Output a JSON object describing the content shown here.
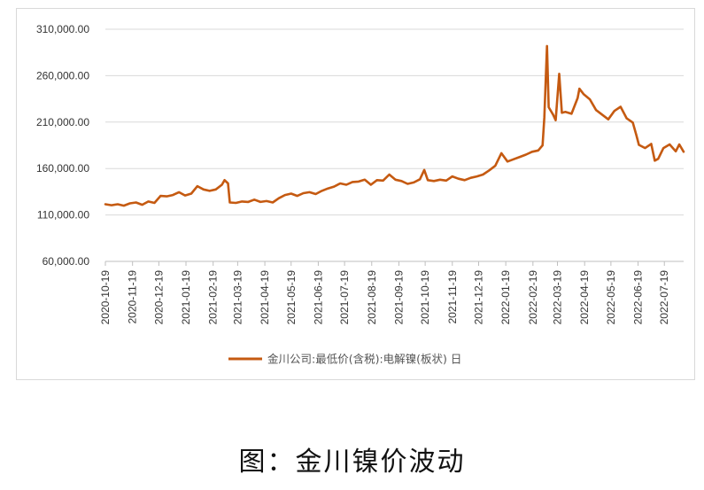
{
  "caption": "图：金川镍价波动",
  "chart_data": {
    "type": "line",
    "title": "",
    "xlabel": "",
    "ylabel": "",
    "ylim": [
      60000,
      310000
    ],
    "y_ticks": [
      "60,000.00",
      "110,000.00",
      "160,000.00",
      "210,000.00",
      "260,000.00",
      "310,000.00"
    ],
    "x_ticks": [
      "2020-10-19",
      "2020-11-19",
      "2020-12-19",
      "2021-01-19",
      "2021-02-19",
      "2021-03-19",
      "2021-04-19",
      "2021-05-19",
      "2021-06-19",
      "2021-07-19",
      "2021-08-19",
      "2021-09-19",
      "2021-10-19",
      "2021-11-19",
      "2021-12-19",
      "2022-01-19",
      "2022-02-19",
      "2022-03-19",
      "2022-04-19",
      "2022-05-19",
      "2022-06-19",
      "2022-07-19"
    ],
    "grid": "horizontal",
    "legend_position": "bottom",
    "series": [
      {
        "name": "金川公司:最低价(含税):电解镍(板状) 日",
        "color": "#C55A11",
        "points": [
          [
            "2020-10-19",
            121500
          ],
          [
            "2020-10-26",
            120500
          ],
          [
            "2020-11-02",
            121500
          ],
          [
            "2020-11-09",
            120000
          ],
          [
            "2020-11-16",
            122500
          ],
          [
            "2020-11-23",
            123500
          ],
          [
            "2020-11-30",
            121000
          ],
          [
            "2020-12-07",
            124500
          ],
          [
            "2020-12-14",
            123000
          ],
          [
            "2020-12-21",
            130500
          ],
          [
            "2020-12-28",
            130000
          ],
          [
            "2021-01-04",
            131500
          ],
          [
            "2021-01-11",
            134500
          ],
          [
            "2021-01-18",
            131000
          ],
          [
            "2021-01-25",
            133000
          ],
          [
            "2021-02-01",
            141000
          ],
          [
            "2021-02-08",
            137500
          ],
          [
            "2021-02-15",
            136000
          ],
          [
            "2021-02-22",
            137500
          ],
          [
            "2021-03-01",
            142500
          ],
          [
            "2021-03-04",
            147500
          ],
          [
            "2021-03-08",
            144000
          ],
          [
            "2021-03-10",
            123500
          ],
          [
            "2021-03-17",
            123000
          ],
          [
            "2021-03-24",
            124500
          ],
          [
            "2021-03-31",
            124000
          ],
          [
            "2021-04-07",
            126500
          ],
          [
            "2021-04-14",
            124000
          ],
          [
            "2021-04-21",
            125000
          ],
          [
            "2021-04-28",
            123500
          ],
          [
            "2021-05-05",
            128000
          ],
          [
            "2021-05-12",
            131500
          ],
          [
            "2021-05-19",
            133000
          ],
          [
            "2021-05-26",
            130500
          ],
          [
            "2021-06-02",
            133500
          ],
          [
            "2021-06-09",
            134500
          ],
          [
            "2021-06-16",
            132500
          ],
          [
            "2021-06-23",
            136000
          ],
          [
            "2021-06-30",
            138500
          ],
          [
            "2021-07-07",
            140500
          ],
          [
            "2021-07-14",
            144000
          ],
          [
            "2021-07-21",
            142500
          ],
          [
            "2021-07-28",
            145500
          ],
          [
            "2021-08-04",
            146000
          ],
          [
            "2021-08-11",
            148000
          ],
          [
            "2021-08-18",
            142500
          ],
          [
            "2021-08-25",
            147500
          ],
          [
            "2021-09-01",
            147000
          ],
          [
            "2021-09-08",
            153500
          ],
          [
            "2021-09-15",
            148000
          ],
          [
            "2021-09-22",
            146500
          ],
          [
            "2021-09-29",
            143500
          ],
          [
            "2021-10-06",
            145000
          ],
          [
            "2021-10-13",
            148500
          ],
          [
            "2021-10-18",
            158500
          ],
          [
            "2021-10-22",
            147500
          ],
          [
            "2021-10-29",
            146500
          ],
          [
            "2021-11-05",
            148000
          ],
          [
            "2021-11-12",
            147000
          ],
          [
            "2021-11-19",
            151500
          ],
          [
            "2021-11-26",
            149000
          ],
          [
            "2021-12-03",
            147500
          ],
          [
            "2021-12-10",
            150000
          ],
          [
            "2021-12-17",
            151500
          ],
          [
            "2021-12-24",
            153500
          ],
          [
            "2021-12-31",
            158000
          ],
          [
            "2022-01-07",
            163000
          ],
          [
            "2022-01-14",
            176500
          ],
          [
            "2022-01-21",
            167500
          ],
          [
            "2022-01-28",
            170000
          ],
          [
            "2022-02-04",
            172500
          ],
          [
            "2022-02-11",
            175000
          ],
          [
            "2022-02-18",
            178000
          ],
          [
            "2022-02-25",
            179500
          ],
          [
            "2022-03-02",
            185000
          ],
          [
            "2022-03-04",
            215000
          ],
          [
            "2022-03-07",
            292000
          ],
          [
            "2022-03-09",
            226000
          ],
          [
            "2022-03-14",
            218000
          ],
          [
            "2022-03-17",
            212000
          ],
          [
            "2022-03-21",
            262000
          ],
          [
            "2022-03-24",
            220000
          ],
          [
            "2022-03-28",
            221000
          ],
          [
            "2022-04-04",
            219000
          ],
          [
            "2022-04-11",
            236000
          ],
          [
            "2022-04-13",
            246000
          ],
          [
            "2022-04-18",
            240000
          ],
          [
            "2022-04-25",
            234500
          ],
          [
            "2022-05-02",
            223000
          ],
          [
            "2022-05-09",
            218000
          ],
          [
            "2022-05-16",
            213000
          ],
          [
            "2022-05-23",
            222000
          ],
          [
            "2022-05-30",
            226500
          ],
          [
            "2022-06-06",
            214000
          ],
          [
            "2022-06-13",
            209500
          ],
          [
            "2022-06-17",
            196000
          ],
          [
            "2022-06-20",
            185500
          ],
          [
            "2022-06-27",
            182000
          ],
          [
            "2022-07-04",
            186500
          ],
          [
            "2022-07-08",
            168500
          ],
          [
            "2022-07-12",
            170500
          ],
          [
            "2022-07-18",
            182000
          ],
          [
            "2022-07-25",
            186000
          ],
          [
            "2022-08-01",
            178500
          ],
          [
            "2022-08-05",
            186000
          ],
          [
            "2022-08-10",
            178000
          ]
        ]
      }
    ]
  }
}
